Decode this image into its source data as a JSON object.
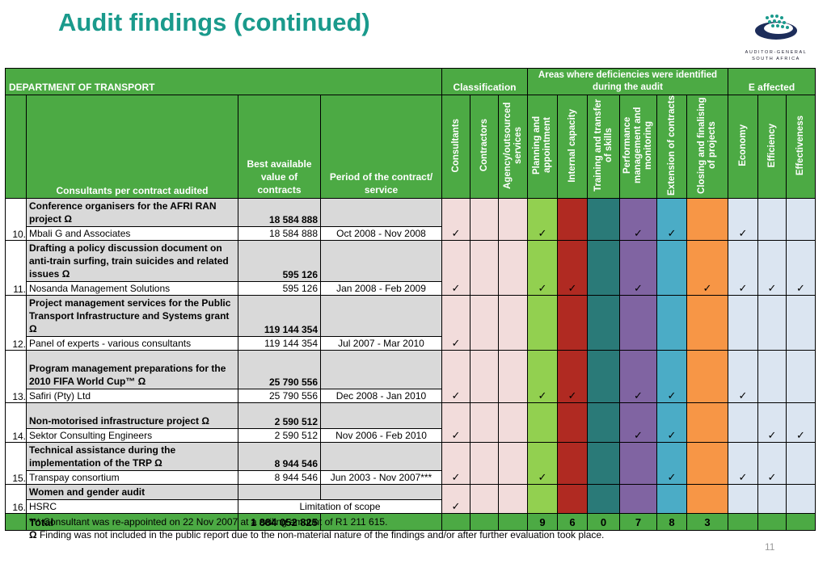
{
  "slide": {
    "title": "Audit findings (continued)",
    "page_number": "11",
    "logo_text_line1": "AUDITOR-GENERAL",
    "logo_text_line2": "SOUTH AFRICA"
  },
  "table": {
    "department": "DEPARTMENT OF TRANSPORT",
    "group_classification": "Classification",
    "group_areas": "Areas where deficiencies were identified during the audit",
    "group_e": "E affected",
    "col_consultants": "Consultants per contract audited",
    "col_value": "Best available value of contracts",
    "col_period": "Period of the contract/ service",
    "flag_headers": [
      "Consultants",
      "Contractors",
      "Agency/outsourced services",
      "Planning and appointment",
      "Internal capacity",
      "Training and transfer of skills",
      "Performance management and monitoring",
      "Extension of contracts",
      "Closing and finalising of projects",
      "Economy",
      "Efficiency",
      "Effectiveness"
    ],
    "rows": [
      {
        "num": "10.",
        "project": "Conference organisers for the AFRI RAN project Ω",
        "project_value": "18 584 888",
        "consultant": "Mbali G and Associates",
        "value": "18 584 888",
        "period": "Oct 2008 - Nov 2008",
        "flags": [
          1,
          0,
          0,
          1,
          0,
          0,
          1,
          1,
          0,
          1,
          0,
          0
        ]
      },
      {
        "num": "11.",
        "project": "Drafting a policy discussion document on anti-train surfing, train suicides and related issues Ω",
        "project_value": "595 126",
        "consultant": "Nosanda Management Solutions",
        "value": "595 126",
        "period": "Jan 2008 - Feb 2009",
        "flags": [
          1,
          0,
          0,
          1,
          1,
          0,
          1,
          0,
          1,
          1,
          1,
          1
        ]
      },
      {
        "num": "12.",
        "project": "Project management services for the Public Transport Infrastructure and Systems grant Ω",
        "project_value": "119 144 354",
        "consultant": "Panel of experts - various consultants",
        "value": "119 144 354",
        "period": "Jul 2007 - Mar 2010",
        "flags": [
          1,
          0,
          0,
          0,
          0,
          0,
          0,
          0,
          0,
          0,
          0,
          0
        ]
      },
      {
        "num": "13.",
        "project": "Program management preparations for the 2010 FIFA World Cup™ Ω",
        "project_value": "25 790 556",
        "consultant": "Safiri (Pty) Ltd",
        "value": "25 790 556",
        "period": "Dec 2008 - Jan 2010",
        "flags": [
          1,
          0,
          0,
          1,
          1,
          0,
          1,
          1,
          0,
          1,
          0,
          0
        ]
      },
      {
        "num": "14.",
        "project": "Non-motorised infrastructure project Ω",
        "project_value": "2 590 512",
        "consultant": "Sektor Consulting Engineers",
        "value": "2 590 512",
        "period": "Nov 2006 - Feb 2010",
        "flags": [
          1,
          0,
          0,
          0,
          0,
          0,
          1,
          1,
          0,
          0,
          1,
          1
        ]
      },
      {
        "num": "15.",
        "project": "Technical assistance during the implementation of the TRP Ω",
        "project_value": "8 944 546",
        "consultant": "Transpay consortium",
        "value": "8 944 546",
        "period": "Jun 2003 - Nov 2007***",
        "flags": [
          1,
          0,
          0,
          1,
          0,
          0,
          0,
          1,
          0,
          1,
          1,
          0
        ]
      },
      {
        "num": "16.",
        "project": "Women and gender audit",
        "project_value": "",
        "consultant": "HSRC",
        "value": "",
        "period": "Limitation of scope",
        "flags": [
          1,
          0,
          0,
          0,
          0,
          0,
          0,
          0,
          0,
          0,
          0,
          0
        ]
      }
    ],
    "total_label": "Total",
    "total_value": "1 884 052 825",
    "totals": [
      "",
      "",
      "",
      "9",
      "6",
      "0",
      "7",
      "8",
      "3",
      "",
      "",
      ""
    ],
    "check_symbol": "✓"
  },
  "notes": {
    "note1": "*** Consultant was re-appointed on 22 Nov 2007 at a ceiling amount of R1 211 615.",
    "note2_symbol": "Ω",
    "note2": " Finding was not included in the public report due to the non-material nature of the findings and/or after further evaluation took place."
  },
  "colors": {
    "title": "#1a9a8c",
    "header": "#4caa44",
    "columns": [
      "#f2dcdb",
      "#f2dcdb",
      "#f2dcdb",
      "#92d050",
      "#b02a22",
      "#2a7a78",
      "#8064a2",
      "#4bacc6",
      "#f79646",
      "#dbe5f1",
      "#dbe5f1",
      "#dbe5f1"
    ]
  }
}
